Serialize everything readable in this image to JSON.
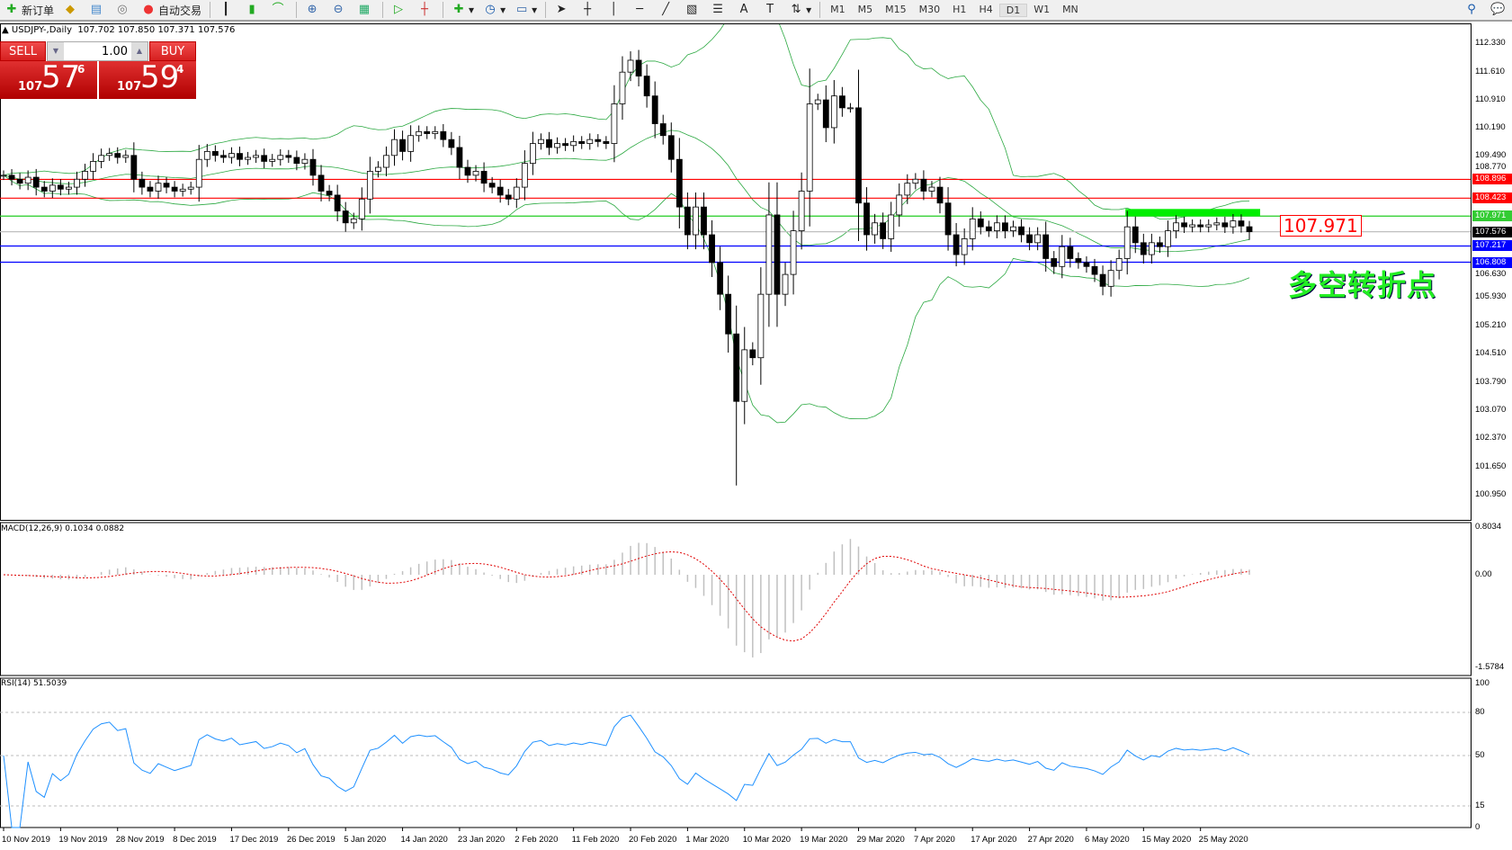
{
  "toolbar": {
    "new_order": "新订单",
    "auto_trading": "自动交易",
    "timeframes": [
      "M1",
      "M5",
      "M15",
      "M30",
      "H1",
      "H4",
      "D1",
      "W1",
      "MN"
    ],
    "active_timeframe": "D1",
    "icons": [
      "bar-chart-icon",
      "candlestick-icon",
      "line-chart-icon",
      "zoom-in-icon",
      "zoom-out-icon",
      "tile-icon",
      "autoscroll-icon",
      "chart-shift-icon",
      "indicators-icon",
      "periods-icon",
      "templates-icon",
      "cursor-icon",
      "crosshair-icon",
      "vertical-line-icon",
      "horizontal-line-icon",
      "trendline-icon",
      "equidistant-channel-icon",
      "fibonacci-icon",
      "text-icon",
      "text-label-icon",
      "arrows-icon",
      "search-icon",
      "chat-icon"
    ]
  },
  "header": {
    "symbol": "USDJPY-,Daily",
    "ohlc": "107.702 107.850 107.371 107.576"
  },
  "trade": {
    "sell": "SELL",
    "buy": "BUY",
    "volume": "1.00",
    "sell_big": "107",
    "sell_main": "57",
    "sell_sup": "6",
    "buy_big": "107",
    "buy_main": "59",
    "buy_sup": "4"
  },
  "colors": {
    "bull": "#ffffff",
    "bear": "#000000",
    "bands": "#2aa840",
    "macd_signal": "#e00000",
    "macd_hist": "#c0c0c0",
    "rsi": "#1e90ff",
    "box": "#00ee00",
    "annotation": "#22ee22"
  },
  "chart_data": [
    {
      "type": "candlestick",
      "symbol": "USDJPY",
      "timeframe": "Daily",
      "ylim": [
        100.95,
        112.33
      ],
      "y_ticks": [
        "112.330",
        "111.610",
        "110.910",
        "110.190",
        "109.490",
        "108.770",
        "106.630",
        "105.930",
        "105.210",
        "104.510",
        "103.790",
        "103.070",
        "102.370",
        "101.650",
        "100.950"
      ],
      "x_tick_labels": [
        "10 Nov 2019",
        "19 Nov 2019",
        "28 Nov 2019",
        "8 Dec 2019",
        "17 Dec 2019",
        "26 Dec 2019",
        "5 Jan 2020",
        "14 Jan 2020",
        "23 Jan 2020",
        "2 Feb 2020",
        "11 Feb 2020",
        "20 Feb 2020",
        "1 Mar 2020",
        "10 Mar 2020",
        "19 Mar 2020",
        "29 Mar 2020",
        "7 Apr 2020",
        "17 Apr 2020",
        "27 Apr 2020",
        "6 May 2020",
        "15 May 2020",
        "25 May 2020"
      ],
      "close": [
        109.0,
        108.9,
        108.8,
        108.95,
        108.7,
        108.6,
        108.75,
        108.65,
        108.7,
        108.9,
        109.1,
        109.35,
        109.5,
        109.55,
        109.45,
        109.5,
        108.9,
        108.7,
        108.6,
        108.8,
        108.7,
        108.6,
        108.65,
        108.7,
        109.4,
        109.6,
        109.5,
        109.45,
        109.55,
        109.4,
        109.45,
        109.5,
        109.35,
        109.4,
        109.5,
        109.45,
        109.3,
        109.4,
        109.0,
        108.6,
        108.5,
        108.1,
        107.8,
        107.9,
        108.4,
        109.1,
        109.2,
        109.5,
        109.9,
        109.6,
        110.0,
        110.1,
        110.05,
        110.1,
        109.9,
        109.7,
        109.2,
        109.0,
        109.1,
        108.8,
        108.7,
        108.5,
        108.4,
        108.7,
        109.3,
        109.8,
        109.9,
        109.7,
        109.8,
        109.75,
        109.85,
        109.8,
        109.9,
        109.85,
        109.8,
        110.8,
        111.6,
        111.9,
        111.5,
        111.0,
        110.3,
        110.0,
        109.4,
        108.2,
        107.5,
        108.2,
        107.5,
        106.8,
        106.0,
        105.0,
        103.3,
        104.6,
        104.4,
        106.0,
        108.0,
        106.0,
        106.5,
        107.6,
        108.6,
        110.8,
        110.9,
        110.2,
        111.0,
        110.7,
        110.7,
        108.3,
        107.5,
        107.8,
        107.4,
        108.0,
        108.5,
        108.8,
        108.9,
        108.6,
        108.7,
        108.3,
        107.5,
        107.0,
        107.4,
        107.9,
        107.7,
        107.6,
        107.8,
        107.6,
        107.7,
        107.5,
        107.3,
        107.5,
        106.9,
        106.7,
        107.2,
        106.9,
        106.8,
        106.7,
        106.5,
        106.2,
        106.6,
        106.9,
        107.7,
        107.3,
        107.0,
        107.3,
        107.2,
        107.6,
        107.8,
        107.7,
        107.75,
        107.7,
        107.75,
        107.8,
        107.7,
        107.85,
        107.72,
        107.576
      ],
      "last_bar": {
        "open": 107.702,
        "high": 107.85,
        "low": 107.371,
        "close": 107.576
      },
      "overlay": "Bollinger Bands",
      "hlines": [
        {
          "price": 108.896,
          "label": "108.896",
          "color": "#ff0000"
        },
        {
          "price": 108.423,
          "label": "108.423",
          "color": "#ff0000"
        },
        {
          "price": 107.971,
          "label": "107.971",
          "color": "#22cc22"
        },
        {
          "price": 107.576,
          "label": "107.576",
          "color": "#c0c0c0",
          "tag": "#000000"
        },
        {
          "price": 107.217,
          "label": "107.217",
          "color": "#0000ff"
        },
        {
          "price": 106.808,
          "label": "106.808",
          "color": "#0000ff"
        }
      ],
      "box_label": "107.971",
      "annotation": "多空转折点"
    },
    {
      "type": "macd",
      "label": "MACD(12,26,9) 0.1034 0.0882",
      "ylim": [
        -1.5784,
        0.8034
      ],
      "y_ticks": [
        "0.8034",
        "0.00",
        "-1.5784"
      ]
    },
    {
      "type": "rsi",
      "label": "RSI(14) 51.5039",
      "ylim": [
        0,
        100
      ],
      "levels": [
        80,
        50,
        15
      ],
      "y_ticks": [
        "100",
        "80",
        "50",
        "15",
        "0"
      ]
    }
  ]
}
